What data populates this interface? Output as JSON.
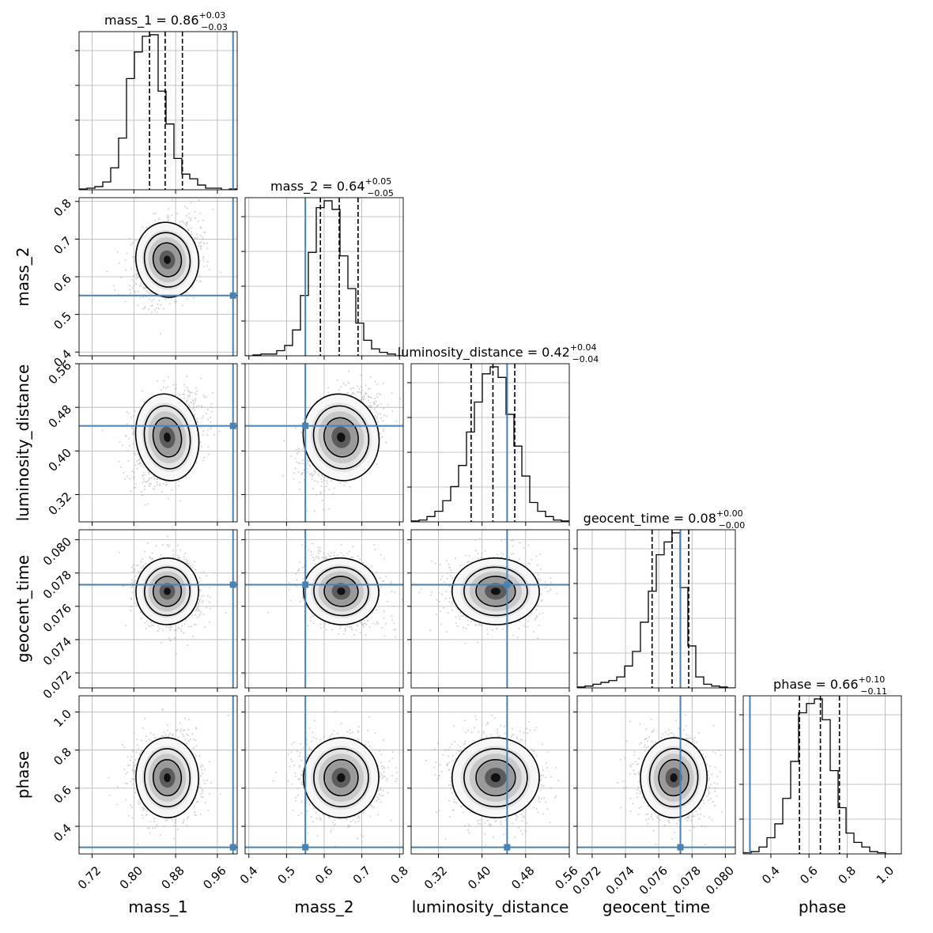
{
  "chart_data": {
    "type": "corner",
    "grid": true,
    "truth_color": "#4682b4",
    "parameters": [
      {
        "name": "mass_1",
        "title": {
          "prefix": "mass_1 = ",
          "median": "0.86",
          "plus": "+0.03",
          "minus": "−0.03"
        },
        "range": [
          0.695,
          0.998
        ],
        "ticks": [
          0.72,
          0.8,
          0.88,
          0.96
        ],
        "tick_labels": [
          "0.72",
          "0.80",
          "0.88",
          "0.96"
        ],
        "truth": 0.99,
        "quantiles": [
          0.83,
          0.86,
          0.893
        ],
        "hist_edges_start": 0.695,
        "hist_bin_width": 0.01515,
        "hist_counts": [
          0.5,
          1,
          2,
          5,
          14,
          33,
          71,
          88,
          98,
          99,
          63,
          42,
          20,
          10,
          7,
          3,
          1,
          1,
          0,
          0.5
        ]
      },
      {
        "name": "mass_2",
        "title": {
          "prefix": "mass_2 = ",
          "median": "0.64",
          "plus": "+0.05",
          "minus": "−0.05"
        },
        "range": [
          0.39,
          0.81
        ],
        "ticks": [
          0.4,
          0.5,
          0.6,
          0.7,
          0.8
        ],
        "tick_labels": [
          "0.4",
          "0.5",
          "0.6",
          "0.7",
          "0.8"
        ],
        "truth": 0.55,
        "quantiles": [
          0.59,
          0.64,
          0.69
        ],
        "hist_edges_start": 0.39,
        "hist_bin_width": 0.021,
        "hist_counts": [
          0,
          0.5,
          1,
          1,
          3,
          6,
          15,
          35,
          60,
          86,
          90,
          85,
          58,
          39,
          19,
          9,
          4,
          2,
          1,
          0
        ]
      },
      {
        "name": "luminosity_distance",
        "title": {
          "prefix": "luminosity_distance = ",
          "median": "0.42",
          "plus": "+0.04",
          "minus": "−0.04"
        },
        "range": [
          0.27,
          0.56
        ],
        "ticks": [
          0.32,
          0.4,
          0.48,
          0.56
        ],
        "tick_labels": [
          "0.32",
          "0.40",
          "0.48",
          "0.56"
        ],
        "truth": 0.446,
        "quantiles": [
          0.38,
          0.42,
          0.46
        ],
        "hist_edges_start": 0.27,
        "hist_bin_width": 0.0145,
        "hist_counts": [
          0.5,
          1,
          3,
          6,
          12,
          20,
          32,
          51,
          68,
          84,
          88,
          82,
          61,
          43,
          26,
          11,
          6,
          3,
          1,
          0.5
        ]
      },
      {
        "name": "geocent_time",
        "title": {
          "prefix": "geocent_time = ",
          "median": "0.08",
          "plus": "+0.00",
          "minus": "−0.00"
        },
        "range": [
          0.0711,
          0.0806
        ],
        "ticks": [
          0.072,
          0.074,
          0.076,
          0.078,
          0.08
        ],
        "tick_labels": [
          "0.072",
          "0.074",
          "0.076",
          "0.078",
          "0.080"
        ],
        "truth": 0.0773,
        "quantiles": [
          0.0756,
          0.0768,
          0.0778
        ],
        "hist_edges_start": 0.0711,
        "hist_bin_width": 0.000475,
        "hist_counts": [
          0.5,
          1,
          2,
          3,
          4,
          6,
          12,
          20,
          36,
          53,
          73,
          80,
          85,
          55,
          23,
          6,
          2,
          1,
          0.5,
          0
        ]
      },
      {
        "name": "phase",
        "title": {
          "prefix": "phase = ",
          "median": "0.66",
          "plus": "+0.10",
          "minus": "−0.11"
        },
        "range": [
          0.255,
          1.085
        ],
        "ticks": [
          0.4,
          0.6,
          0.8,
          1.0
        ],
        "tick_labels": [
          "0.4",
          "0.6",
          "0.8",
          "1.0"
        ],
        "truth": 0.29,
        "quantiles": [
          0.55,
          0.66,
          0.76
        ],
        "hist_edges_start": 0.255,
        "hist_bin_width": 0.0415,
        "hist_counts": [
          0.5,
          1,
          3,
          7,
          13,
          24,
          40,
          61,
          65,
          67,
          58,
          36,
          20,
          9,
          5,
          3,
          1,
          0.5,
          0,
          0
        ]
      }
    ],
    "pairs": [
      {
        "row": 1,
        "col": 0,
        "center": [
          0.864,
          0.645
        ],
        "spread": [
          0.03,
          0.05
        ],
        "corr": 0.3
      },
      {
        "row": 2,
        "col": 0,
        "center": [
          0.864,
          0.425
        ],
        "spread": [
          0.03,
          0.04
        ],
        "corr": 0.3
      },
      {
        "row": 2,
        "col": 1,
        "center": [
          0.645,
          0.425
        ],
        "spread": [
          0.05,
          0.04
        ],
        "corr": 0.45
      },
      {
        "row": 3,
        "col": 0,
        "center": [
          0.864,
          0.0769
        ],
        "spread": [
          0.03,
          0.001
        ],
        "corr": -0.15
      },
      {
        "row": 3,
        "col": 1,
        "center": [
          0.645,
          0.0769
        ],
        "spread": [
          0.05,
          0.001
        ],
        "corr": -0.2
      },
      {
        "row": 3,
        "col": 2,
        "center": [
          0.425,
          0.0769
        ],
        "spread": [
          0.04,
          0.001
        ],
        "corr": -0.05
      },
      {
        "row": 4,
        "col": 0,
        "center": [
          0.864,
          0.655
        ],
        "spread": [
          0.03,
          0.105
        ],
        "corr": 0.05
      },
      {
        "row": 4,
        "col": 1,
        "center": [
          0.645,
          0.655
        ],
        "spread": [
          0.05,
          0.105
        ],
        "corr": -0.05
      },
      {
        "row": 4,
        "col": 2,
        "center": [
          0.425,
          0.655
        ],
        "spread": [
          0.04,
          0.105
        ],
        "corr": 0.0
      },
      {
        "row": 4,
        "col": 3,
        "center": [
          0.0769,
          0.655
        ],
        "spread": [
          0.001,
          0.105
        ],
        "corr": -0.05
      }
    ]
  }
}
